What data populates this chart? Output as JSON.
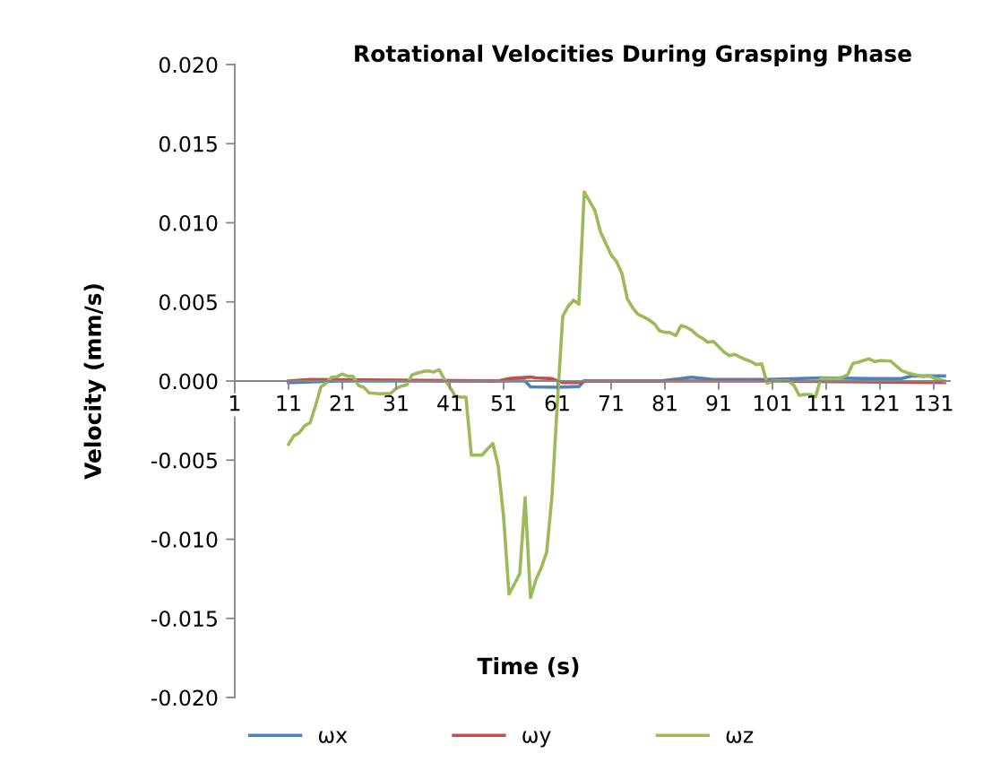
{
  "chart_data": {
    "type": "line",
    "title": "Rotational Velocities During Grasping Phase",
    "xlabel": "Time (s)",
    "ylabel": "Velocity (mm/s)",
    "xlim": [
      1,
      134
    ],
    "xticks": [
      1,
      11,
      21,
      31,
      41,
      51,
      61,
      71,
      81,
      91,
      101,
      111,
      121,
      131
    ],
    "ylim": [
      -0.02,
      0.02
    ],
    "yticks": [
      {
        "value": -0.02,
        "label": "-0.020"
      },
      {
        "value": -0.015,
        "label": "-0.015"
      },
      {
        "value": -0.01,
        "label": "-0.010"
      },
      {
        "value": -0.005,
        "label": "-0.005"
      },
      {
        "value": 0,
        "label": "0.000"
      },
      {
        "value": 0.005,
        "label": "0.005"
      },
      {
        "value": 0.01,
        "label": "0.010"
      },
      {
        "value": 0.015,
        "label": "0.015"
      },
      {
        "value": 0.02,
        "label": "0.020"
      }
    ],
    "grid": false,
    "legend": "bottom",
    "marker": "none",
    "line_style": "solid",
    "series": [
      {
        "name": "ωx",
        "color": "#4f81bd",
        "x": [
          11,
          20,
          53,
          55,
          56,
          61,
          65,
          66,
          80,
          86,
          90,
          100,
          110,
          120,
          125,
          127,
          133
        ],
        "values": [
          -0.0001,
          0.0,
          0.0,
          0.0,
          -0.00037,
          -0.0004,
          -0.00035,
          0.0,
          0.0,
          0.00024,
          0.0001,
          0.0001,
          0.0002,
          0.00015,
          0.00015,
          0.00032,
          0.00032
        ]
      },
      {
        "name": "ωy",
        "color": "#c0504d",
        "x": [
          11,
          15,
          50,
          52,
          56,
          57,
          60,
          62,
          65,
          66,
          100,
          133
        ],
        "values": [
          0.0,
          0.0001,
          0.0,
          0.00015,
          0.00025,
          0.0002,
          0.00015,
          -0.0001,
          -0.0001,
          0.0,
          0.0,
          -0.0001
        ]
      },
      {
        "name": "ωz",
        "color": "#9bbb59",
        "x": [
          11,
          12,
          13,
          14,
          15,
          16,
          17,
          18,
          19,
          20,
          21,
          22,
          23,
          24,
          25,
          26,
          28,
          30,
          31,
          32,
          33,
          34,
          35,
          36,
          37,
          38,
          39,
          40,
          41,
          42,
          43,
          44,
          45,
          47,
          48,
          49,
          50,
          51,
          52,
          53,
          54,
          55,
          56,
          57,
          58,
          59,
          60,
          61,
          62,
          63,
          64,
          65,
          66,
          68,
          69,
          71,
          72,
          73,
          74,
          75,
          76,
          77,
          78,
          79,
          80,
          81,
          82,
          83,
          84,
          85,
          86,
          87,
          88,
          89,
          90,
          91,
          92,
          93,
          94,
          95,
          96,
          97,
          98,
          99,
          100,
          101,
          103,
          104,
          105,
          106,
          107,
          108,
          109,
          110,
          111,
          113,
          114,
          115,
          116,
          117,
          118,
          119,
          120,
          121,
          123,
          124,
          125,
          126,
          127,
          129,
          130,
          131,
          132,
          133
        ],
        "values": [
          -0.004,
          -0.00346,
          -0.00327,
          -0.00283,
          -0.00264,
          -0.00159,
          -0.00038,
          -0.00013,
          0.00024,
          0.00027,
          0.00044,
          0.0003,
          0.0003,
          -0.00028,
          -0.0004,
          -0.00075,
          -0.00081,
          -0.00078,
          -0.00047,
          -0.00032,
          -0.00024,
          0.0004,
          0.00051,
          0.0006,
          0.00064,
          0.00057,
          0.00072,
          0.0001,
          -0.00038,
          -0.00094,
          -0.00102,
          -0.00102,
          -0.00468,
          -0.00468,
          -0.00429,
          -0.00395,
          -0.00538,
          -0.0086,
          -0.01347,
          -0.01284,
          -0.01218,
          -0.00737,
          -0.01369,
          -0.01256,
          -0.01181,
          -0.01082,
          -0.00727,
          -0.00132,
          0.0041,
          0.00472,
          0.0051,
          0.00486,
          0.01195,
          0.01076,
          0.00944,
          0.00797,
          0.00755,
          0.0068,
          0.0052,
          0.00463,
          0.00421,
          0.00406,
          0.00387,
          0.00363,
          0.00317,
          0.00308,
          0.00306,
          0.00287,
          0.0035,
          0.0034,
          0.00321,
          0.00289,
          0.0027,
          0.00245,
          0.00251,
          0.00217,
          0.00183,
          0.0016,
          0.00168,
          0.00151,
          0.00136,
          0.00123,
          0.00104,
          0.00109,
          -0.00014,
          0.0,
          0.0,
          0.0,
          -0.00028,
          -0.00091,
          -0.00085,
          -0.00085,
          -0.001,
          0.00015,
          0.00015,
          0.00017,
          0.00024,
          0.00041,
          0.00112,
          0.00119,
          0.0013,
          0.0014,
          0.00123,
          0.00129,
          0.00126,
          0.00095,
          0.00066,
          0.00053,
          0.00044,
          0.00028,
          0.00036,
          0.00019,
          0.0001,
          0.0
        ]
      }
    ]
  }
}
